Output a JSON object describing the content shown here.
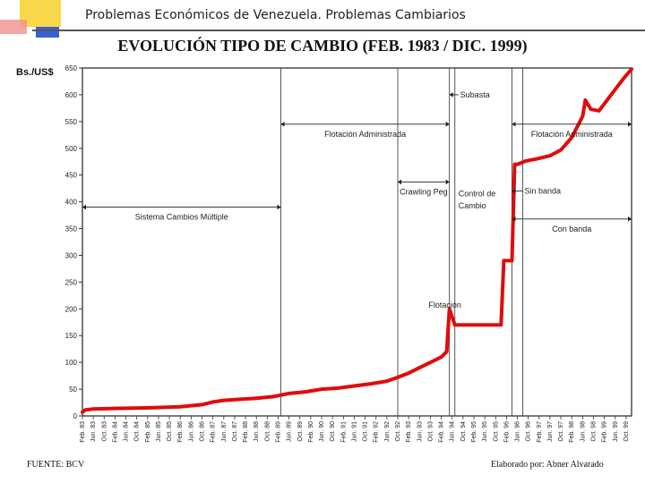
{
  "header": {
    "title": "Problemas Económicos de Venezuela.  Problemas Cambiarios"
  },
  "footer": {
    "source": "FUENTE: BCV",
    "author": "Elaborado por: Abner Alvarado"
  },
  "colors": {
    "series": "#e10b0b",
    "axis": "#333333",
    "frame": "#222222"
  },
  "chart_data": {
    "type": "line",
    "title": "EVOLUCIÓN TIPO DE CAMBIO  (FEB. 1983 / DIC. 1999)",
    "ylabel": "Bs./US$",
    "xlabel": "",
    "ylim": [
      0,
      650
    ],
    "yticks": [
      0,
      50,
      100,
      150,
      200,
      250,
      300,
      350,
      400,
      450,
      500,
      550,
      600,
      650
    ],
    "xlim": [
      "1983-02",
      "1999-12"
    ],
    "xticks": [
      "Feb. 83",
      "Jun. 83",
      "Oct. 83",
      "Feb. 84",
      "Jun. 84",
      "Oct. 84",
      "Feb. 85",
      "Jun. 85",
      "Oct. 85",
      "Feb. 86",
      "Jun. 86",
      "Oct. 86",
      "Feb. 87",
      "Jun. 87",
      "Oct. 87",
      "Feb. 88",
      "Jun. 88",
      "Oct. 88",
      "Feb. 89",
      "Jun. 89",
      "Oct. 89",
      "Feb. 90",
      "Jun. 90",
      "Oct. 90",
      "Feb. 91",
      "Jun. 91",
      "Oct. 91",
      "Feb. 92",
      "Jun. 92",
      "Oct. 92",
      "Feb. 93",
      "Jun. 93",
      "Oct. 93",
      "Feb. 94",
      "Jun. 94",
      "Oct. 94",
      "Feb. 95",
      "Jun. 95",
      "Oct. 95",
      "Feb. 96",
      "Jun. 96",
      "Oct. 96",
      "Feb. 97",
      "Jun. 97",
      "Oct. 97",
      "Feb. 98",
      "Jun. 98",
      "Oct. 98",
      "Feb. 99",
      "Jun. 99",
      "Oct. 99"
    ],
    "grid": false,
    "legend": "none",
    "series": [
      {
        "x": [
          "1983-02",
          "1983-03",
          "1983-06",
          "1984-02",
          "1985-02",
          "1986-02",
          "1986-10",
          "1987-02",
          "1987-06",
          "1987-12",
          "1988-06",
          "1988-12",
          "1989-02",
          "1989-03",
          "1989-06",
          "1989-12",
          "1990-06",
          "1990-12",
          "1991-06",
          "1991-12",
          "1992-06",
          "1992-10",
          "1993-02",
          "1993-06",
          "1993-10",
          "1994-02",
          "1994-04",
          "1994-05",
          "1994-07",
          "1995-06",
          "1995-12",
          "1996-01",
          "1996-04",
          "1996-05",
          "1996-06",
          "1996-07",
          "1996-09",
          "1997-01",
          "1997-06",
          "1997-10",
          "1998-02",
          "1998-06",
          "1998-07",
          "1998-09",
          "1998-12",
          "1999-03",
          "1999-06",
          "1999-09",
          "1999-12"
        ],
        "y": [
          7,
          11,
          13,
          14,
          15,
          17,
          21,
          26,
          29,
          31,
          33,
          36,
          38,
          39,
          42,
          45,
          50,
          52,
          56,
          60,
          65,
          72,
          80,
          90,
          100,
          110,
          120,
          200,
          170,
          170,
          170,
          290,
          290,
          470,
          470,
          472,
          476,
          480,
          486,
          497,
          520,
          560,
          590,
          573,
          570,
          590,
          610,
          630,
          648
        ]
      }
    ],
    "annotations": [
      {
        "text": "Sistema Cambios Múltiple",
        "range": [
          "1983-02",
          "1989-03"
        ],
        "y": 390
      },
      {
        "text": "Flotación Administrada",
        "range": [
          "1989-03",
          "1994-05"
        ],
        "y": 545
      },
      {
        "text": "Subasta",
        "at": "1994-05",
        "y": 600
      },
      {
        "text": "Crawling Peg",
        "range": [
          "1992-10",
          "1994-05"
        ],
        "y": 437
      },
      {
        "text": "Control de",
        "at": "1994-07",
        "y": 415
      },
      {
        "text": "Cambio",
        "at": "1994-07",
        "y": 393
      },
      {
        "text": "Flotación",
        "at": "1993-10",
        "y": 207
      },
      {
        "text": "Sin banda",
        "at": "1996-04",
        "y": 420
      },
      {
        "text": "Flotación Administrada",
        "range": [
          "1996-04",
          "1999-12"
        ],
        "y": 545
      },
      {
        "text": "Con banda",
        "range": [
          "1996-04",
          "1999-12"
        ],
        "y": 368
      }
    ],
    "regime_lines": [
      "1989-03",
      "1992-10",
      "1994-05",
      "1994-07",
      "1996-04",
      "1996-08"
    ]
  }
}
